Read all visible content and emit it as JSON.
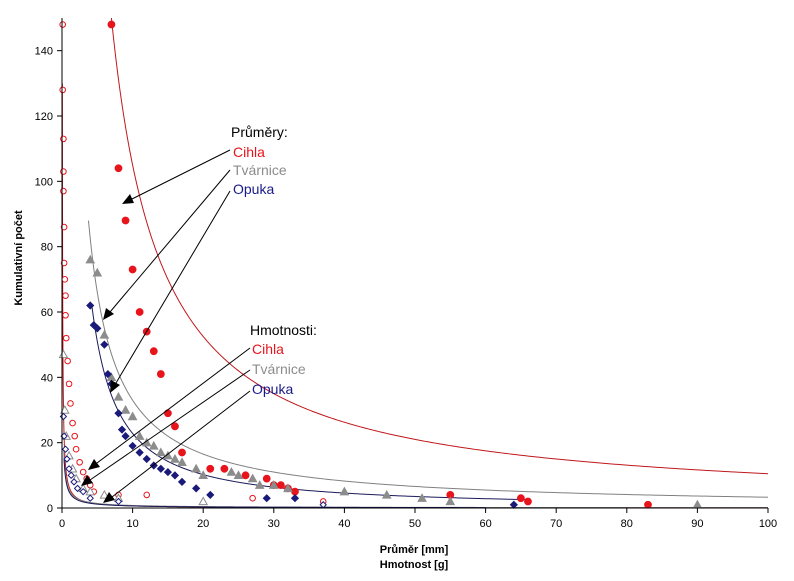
{
  "chart_data": {
    "type": "scatter",
    "title": "",
    "xlabel": "Průměr [mm]",
    "xlabel2": "Hmotnost [g]",
    "ylabel": "Kumulativní počet",
    "xlim": [
      0,
      100
    ],
    "ylim": [
      0,
      150
    ],
    "x_ticks": [
      "0",
      "10",
      "20",
      "30",
      "40",
      "50",
      "60",
      "70",
      "80",
      "90",
      "100"
    ],
    "y_ticks": [
      "0",
      "20",
      "40",
      "60",
      "80",
      "100",
      "120",
      "140"
    ],
    "grid": false,
    "annotations": {
      "group1_heading": "Průměry:",
      "group1_items": [
        "Cihla",
        "Tvárnice",
        "Opuka"
      ],
      "group2_heading": "Hmotnosti:",
      "group2_items": [
        "Cihla",
        "Tvárnice",
        "Opuka"
      ]
    },
    "colors": {
      "cihla": "#e8141c",
      "tvarnice": "#8c8c8c",
      "opuka": "#1a1a7a",
      "fit_cihla": "#c0181c",
      "fit_tvarnice": "#808080",
      "fit_opuka": "#1a1a5a"
    },
    "series": [
      {
        "group": "prumery",
        "material": "cihla",
        "marker": "circle-filled",
        "points": [
          [
            7,
            148
          ],
          [
            8,
            104
          ],
          [
            9,
            88
          ],
          [
            10,
            73
          ],
          [
            11,
            60
          ],
          [
            12,
            54
          ],
          [
            13,
            48
          ],
          [
            14,
            41
          ],
          [
            15,
            29
          ],
          [
            16,
            25
          ],
          [
            17,
            17
          ],
          [
            21,
            12
          ],
          [
            23,
            12
          ],
          [
            26,
            10
          ],
          [
            29,
            9
          ],
          [
            30,
            7
          ],
          [
            31,
            7
          ],
          [
            32,
            6
          ],
          [
            33,
            5
          ],
          [
            55,
            4
          ],
          [
            65,
            3
          ],
          [
            66,
            2
          ],
          [
            83,
            1
          ]
        ]
      },
      {
        "group": "prumery",
        "material": "tvarnice",
        "marker": "triangle-filled",
        "points": [
          [
            4,
            76
          ],
          [
            5,
            72
          ],
          [
            6,
            53
          ],
          [
            7,
            40
          ],
          [
            8,
            34
          ],
          [
            9,
            30
          ],
          [
            10,
            28
          ],
          [
            11,
            22
          ],
          [
            12,
            20
          ],
          [
            13,
            19
          ],
          [
            14,
            17
          ],
          [
            15,
            16
          ],
          [
            16,
            15
          ],
          [
            17,
            14
          ],
          [
            19,
            12
          ],
          [
            20,
            10
          ],
          [
            24,
            11
          ],
          [
            25,
            10
          ],
          [
            27,
            9
          ],
          [
            28,
            7
          ],
          [
            30,
            7
          ],
          [
            32,
            6
          ],
          [
            40,
            5
          ],
          [
            46,
            4
          ],
          [
            51,
            3
          ],
          [
            55,
            2
          ],
          [
            90,
            1
          ]
        ]
      },
      {
        "group": "prumery",
        "material": "opuka",
        "marker": "diamond-filled",
        "points": [
          [
            4,
            62
          ],
          [
            4.5,
            56
          ],
          [
            5,
            55
          ],
          [
            6,
            50
          ],
          [
            6.5,
            41
          ],
          [
            7,
            38
          ],
          [
            8,
            29
          ],
          [
            8.5,
            24
          ],
          [
            9,
            22
          ],
          [
            10,
            19
          ],
          [
            11,
            17
          ],
          [
            12,
            15
          ],
          [
            13,
            13
          ],
          [
            14,
            12
          ],
          [
            15,
            11
          ],
          [
            16,
            10
          ],
          [
            17,
            8
          ],
          [
            19,
            6
          ],
          [
            21,
            4
          ],
          [
            29,
            3
          ],
          [
            33,
            3
          ],
          [
            64,
            1
          ]
        ]
      },
      {
        "group": "hmotnosti",
        "material": "cihla",
        "marker": "circle-open",
        "points": [
          [
            0.1,
            148
          ],
          [
            0.1,
            128
          ],
          [
            0.2,
            113
          ],
          [
            0.2,
            103
          ],
          [
            0.2,
            97
          ],
          [
            0.3,
            86
          ],
          [
            0.3,
            75
          ],
          [
            0.4,
            70
          ],
          [
            0.5,
            65
          ],
          [
            0.5,
            59
          ],
          [
            0.6,
            52
          ],
          [
            0.8,
            45
          ],
          [
            1,
            38
          ],
          [
            1.2,
            32
          ],
          [
            1.5,
            26
          ],
          [
            1.8,
            22
          ],
          [
            2,
            18
          ],
          [
            2.5,
            14
          ],
          [
            3,
            11
          ],
          [
            3.5,
            9
          ],
          [
            4,
            7
          ],
          [
            4.5,
            5
          ],
          [
            8,
            4
          ],
          [
            12,
            4
          ],
          [
            27,
            3
          ],
          [
            37,
            2
          ]
        ]
      },
      {
        "group": "hmotnosti",
        "material": "tvarnice",
        "marker": "triangle-open",
        "points": [
          [
            0.2,
            47
          ],
          [
            0.4,
            30
          ],
          [
            0.6,
            22
          ],
          [
            1,
            16
          ],
          [
            1.5,
            12
          ],
          [
            2,
            9
          ],
          [
            3,
            6
          ],
          [
            4,
            5
          ],
          [
            6,
            4
          ],
          [
            8,
            3
          ],
          [
            20,
            2
          ]
        ]
      },
      {
        "group": "hmotnosti",
        "material": "opuka",
        "marker": "diamond-open",
        "points": [
          [
            0.2,
            28
          ],
          [
            0.3,
            22
          ],
          [
            0.5,
            18
          ],
          [
            0.7,
            15
          ],
          [
            1,
            12
          ],
          [
            1.3,
            10
          ],
          [
            1.7,
            8
          ],
          [
            2.2,
            6
          ],
          [
            3,
            5
          ],
          [
            4,
            3
          ],
          [
            8,
            2
          ],
          [
            37,
            1
          ]
        ]
      }
    ],
    "fits": [
      {
        "material": "cihla",
        "a": 1050,
        "b": 1.0,
        "x0": 7.0,
        "x1": 100
      },
      {
        "material": "tvarnice",
        "a": 330,
        "b": 1.0,
        "x0": 3.75,
        "x1": 100
      },
      {
        "material": "opuka",
        "a": 330,
        "b": 1.16,
        "x0": 4.2,
        "x1": 66
      },
      {
        "material": "cihla",
        "a": 6.5,
        "b": 1.0,
        "x0": 0.05,
        "x1": 100
      },
      {
        "material": "tvarnice",
        "a": 5.5,
        "b": 0.85,
        "x0": 0.25,
        "x1": 100
      },
      {
        "material": "opuka",
        "a": 5.0,
        "b": 0.9,
        "x0": 0.3,
        "x1": 60
      }
    ]
  }
}
